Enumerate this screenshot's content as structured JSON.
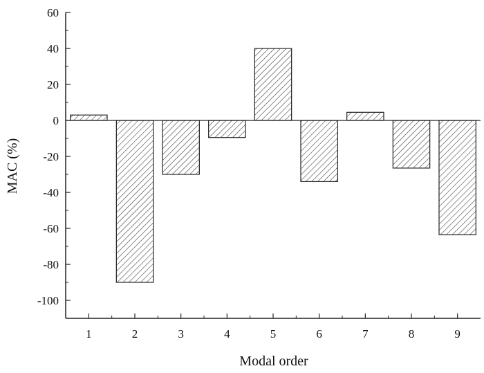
{
  "chart_data": {
    "type": "bar",
    "categories": [
      "1",
      "2",
      "3",
      "4",
      "5",
      "6",
      "7",
      "8",
      "9"
    ],
    "values": [
      3,
      -90,
      -30,
      -9.5,
      40,
      -34,
      4.5,
      -26.5,
      -63.5
    ],
    "title": "",
    "xlabel": "Modal order",
    "ylabel": "MAC (%)",
    "ylim": [
      -110,
      60
    ],
    "yticks": [
      60,
      40,
      20,
      0,
      -20,
      -40,
      -60,
      -80,
      -100
    ],
    "ytick_labels": [
      "60",
      "40",
      "20",
      "0",
      "-20",
      "-40",
      "-60",
      "-80",
      "-100"
    ],
    "grid": false,
    "legend": "none",
    "bar_fill": "hatched",
    "colors": {
      "bar_stroke": "#222222",
      "hatch": "#333333",
      "axis": "#222222"
    }
  }
}
